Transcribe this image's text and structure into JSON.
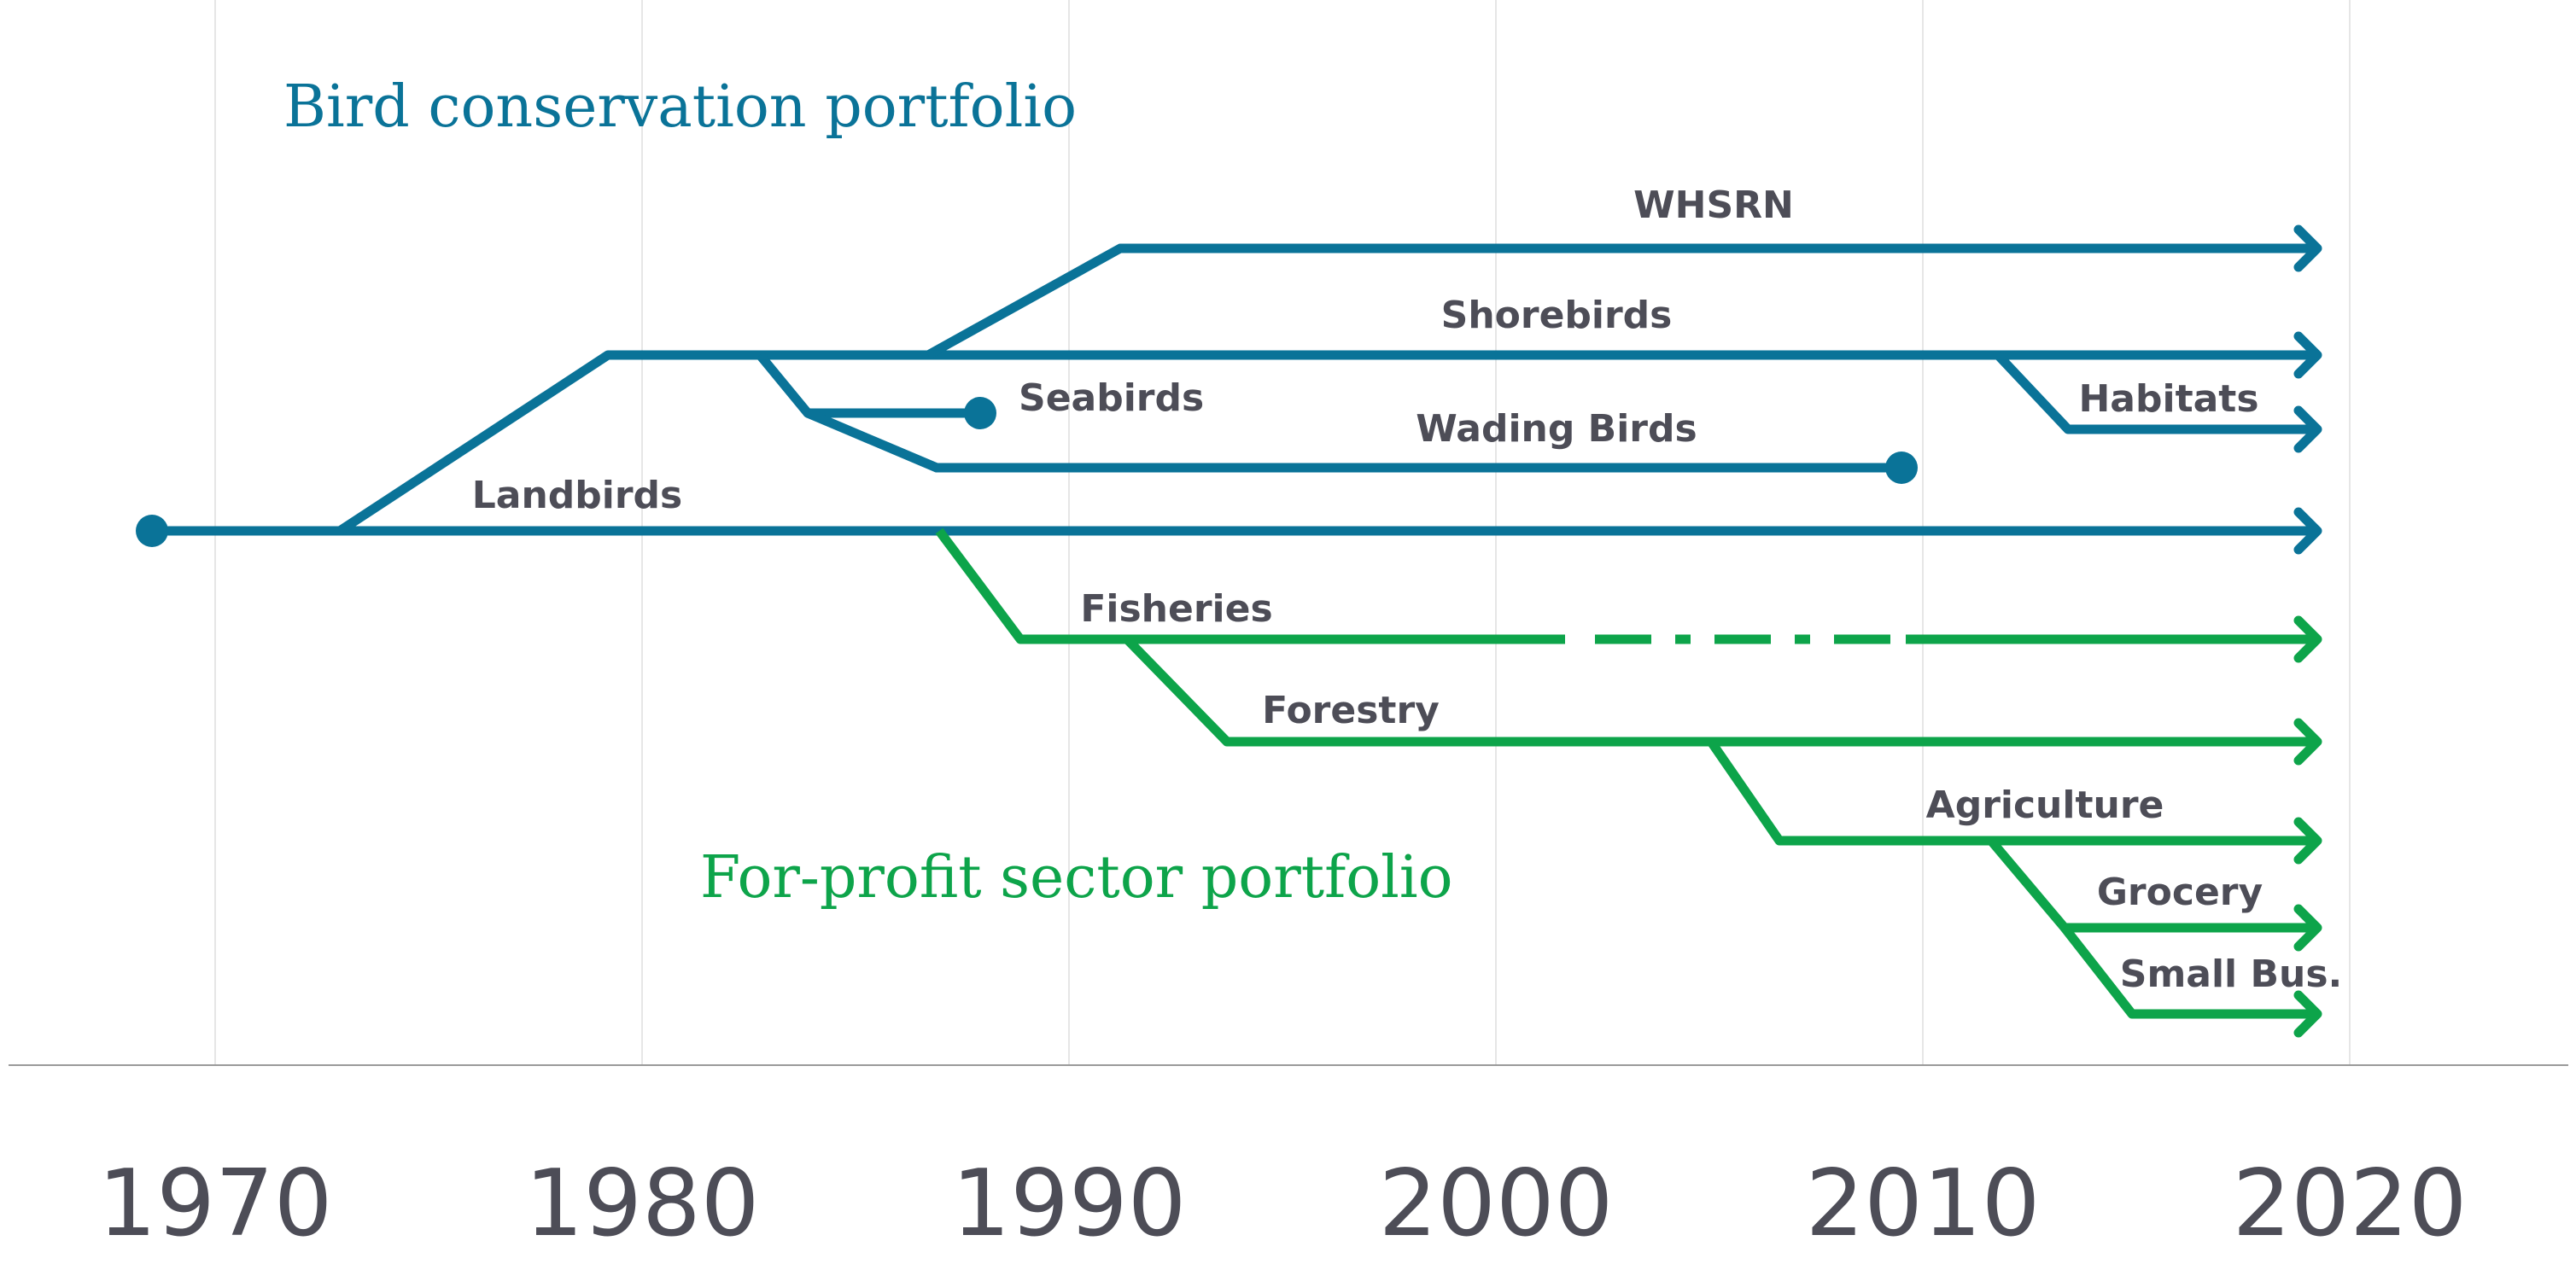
{
  "colors": {
    "bird": "#0a7398",
    "profit": "#0da44a",
    "label": "#4d4d57",
    "grid": "#e6e6e6",
    "axis": "#9a9a9a"
  },
  "headings": {
    "bird": "Bird conservation portfolio",
    "profit": "For-profit sector portfolio"
  },
  "axis": {
    "years": [
      "1970",
      "1980",
      "1990",
      "2000",
      "2010",
      "2020"
    ]
  },
  "branches": [
    {
      "id": "landbirds",
      "label": "Landbirds",
      "portfolio": "bird",
      "start": 1968.5,
      "end": "ongoing"
    },
    {
      "id": "shorebirds",
      "label": "Shorebirds",
      "portfolio": "bird",
      "start": 1973,
      "end": "ongoing"
    },
    {
      "id": "whsrn",
      "label": "WHSRN",
      "portfolio": "bird",
      "start": 1986.5,
      "end": "ongoing"
    },
    {
      "id": "seabirds",
      "label": "Seabirds",
      "portfolio": "bird",
      "start": 1983,
      "end": 1988
    },
    {
      "id": "wading-birds",
      "label": "Wading Birds",
      "portfolio": "bird",
      "start": 1984,
      "end": 2009.8
    },
    {
      "id": "habitats",
      "label": "Habitats",
      "portfolio": "bird",
      "start": 2012,
      "end": "ongoing"
    },
    {
      "id": "fisheries",
      "label": "Fisheries",
      "portfolio": "profit",
      "start": 1987,
      "end": "ongoing",
      "paused": [
        2001.7,
        2010
      ]
    },
    {
      "id": "forestry",
      "label": "Forestry",
      "portfolio": "profit",
      "start": 1991.5,
      "end": "ongoing"
    },
    {
      "id": "agriculture",
      "label": "Agriculture",
      "portfolio": "profit",
      "start": 2005,
      "end": "ongoing"
    },
    {
      "id": "grocery",
      "label": "Grocery",
      "portfolio": "profit",
      "start": 2012,
      "end": "ongoing"
    },
    {
      "id": "small-bus",
      "label": "Small Bus.",
      "portfolio": "profit",
      "start": 2013.5,
      "end": "ongoing"
    }
  ]
}
